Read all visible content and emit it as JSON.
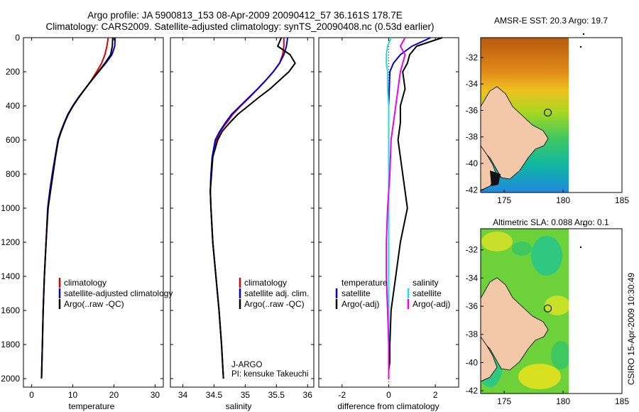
{
  "header": {
    "title_line1": "Argo profile: JA 5900813_153 08-Apr-2009 20090412_57 36.161S 178.7E",
    "title_line2": "Climatology: CARS2009. Satellite-adjusted climatology: synTS_20090408.nc (0.53d earlier)"
  },
  "side_label": "CSIRO 15-Apr-2009 10:30:49",
  "colors": {
    "red": "#dd0000",
    "blue": "#0000dd",
    "black": "#000000",
    "cyan": "#22dddd",
    "magenta": "#ee00ee",
    "land": "#f2c8a8"
  },
  "chart_data": [
    {
      "type": "line",
      "id": "temperature",
      "xlabel": "temperature",
      "ylabel": "",
      "xlim": [
        -2,
        32
      ],
      "ylim": [
        2050,
        0
      ],
      "xticks": [
        0,
        10,
        20,
        30
      ],
      "yticks": [
        0,
        200,
        400,
        600,
        800,
        1000,
        1200,
        1400,
        1600,
        1800,
        2000
      ],
      "legend": [
        "climatology",
        "satellite-adjusted climatology",
        "Argo(..raw -QC)"
      ],
      "legend_colors": [
        "red",
        "blue",
        "black"
      ],
      "series": [
        {
          "name": "climatology",
          "color": "red",
          "x": [
            18.6,
            18.3,
            17.8,
            17.0,
            15.8,
            14.5,
            13.0,
            11.4,
            10.0,
            8.8,
            7.9,
            7.1,
            6.4,
            5.7,
            5.0,
            4.4,
            3.9,
            3.5,
            3.1,
            2.8,
            2.6,
            2.4
          ],
          "y": [
            0,
            50,
            100,
            150,
            200,
            250,
            300,
            350,
            400,
            450,
            500,
            550,
            600,
            700,
            800,
            900,
            1000,
            1200,
            1400,
            1600,
            1800,
            2000
          ]
        },
        {
          "name": "satellite-adjusted climatology",
          "color": "blue",
          "x": [
            20.3,
            20.2,
            19.5,
            18.0,
            16.3,
            14.6,
            13.0,
            11.4,
            10.0,
            8.8,
            7.9,
            7.1,
            6.4,
            5.7,
            5.0,
            4.4,
            3.9,
            3.5,
            3.1,
            2.8,
            2.6,
            2.4
          ],
          "y": [
            0,
            50,
            100,
            150,
            200,
            250,
            300,
            350,
            400,
            450,
            500,
            550,
            600,
            700,
            800,
            900,
            1000,
            1200,
            1400,
            1600,
            1800,
            2000
          ]
        },
        {
          "name": "Argo(..raw -QC)",
          "color": "black",
          "x": [
            19.7,
            19.6,
            19.2,
            17.8,
            16.2,
            14.6,
            13.0,
            11.5,
            10.1,
            8.9,
            8.0,
            7.2,
            6.5,
            5.8,
            5.2,
            4.6,
            4.0,
            3.5,
            3.1,
            2.8,
            2.6,
            2.4
          ],
          "y": [
            0,
            50,
            100,
            150,
            200,
            250,
            300,
            350,
            400,
            450,
            500,
            550,
            600,
            700,
            800,
            900,
            1000,
            1200,
            1400,
            1600,
            1800,
            2000
          ]
        }
      ]
    },
    {
      "type": "line",
      "id": "salinity",
      "xlabel": "salinity",
      "xlim": [
        33.8,
        36.1
      ],
      "ylim": [
        2050,
        0
      ],
      "xticks": [
        34,
        34.5,
        35,
        35.5,
        36
      ],
      "legend": [
        "climatology",
        "satellite adj. clim.",
        "Argo(..raw -QC)"
      ],
      "legend_colors": [
        "red",
        "blue",
        "black"
      ],
      "annotation_line1": "J-ARGO",
      "annotation_line2": "PI: kensuke Takeuchi",
      "series": [
        {
          "name": "climatology",
          "color": "red",
          "x": [
            35.62,
            35.62,
            35.6,
            35.55,
            35.45,
            35.33,
            35.2,
            35.07,
            34.93,
            34.8,
            34.7,
            34.6,
            34.54,
            34.48,
            34.45,
            34.44,
            34.45,
            34.48,
            34.53,
            34.58,
            34.62,
            34.65
          ],
          "y": [
            0,
            50,
            100,
            150,
            200,
            250,
            300,
            350,
            400,
            450,
            500,
            550,
            600,
            700,
            800,
            900,
            1000,
            1200,
            1400,
            1600,
            1800,
            2000
          ]
        },
        {
          "name": "satellite adj. clim.",
          "color": "blue",
          "x": [
            35.68,
            35.66,
            35.62,
            35.55,
            35.45,
            35.33,
            35.2,
            35.06,
            34.92,
            34.78,
            34.68,
            34.59,
            34.52,
            34.47,
            34.45,
            34.44,
            34.45,
            34.48,
            34.53,
            34.58,
            34.62,
            34.65
          ],
          "y": [
            0,
            50,
            100,
            150,
            200,
            250,
            300,
            350,
            400,
            450,
            500,
            550,
            600,
            700,
            800,
            900,
            1000,
            1200,
            1400,
            1600,
            1800,
            2000
          ]
        },
        {
          "name": "Argo(..raw -QC)",
          "color": "black",
          "x": [
            35.58,
            35.52,
            35.72,
            35.8,
            35.7,
            35.55,
            35.4,
            35.22,
            35.05,
            34.88,
            34.75,
            34.63,
            34.56,
            34.48,
            34.46,
            34.44,
            34.45,
            34.48,
            34.53,
            34.58,
            34.62,
            34.65
          ],
          "y": [
            0,
            50,
            100,
            150,
            200,
            250,
            300,
            350,
            400,
            450,
            500,
            550,
            600,
            700,
            800,
            900,
            1000,
            1200,
            1400,
            1600,
            1800,
            2000
          ]
        }
      ]
    },
    {
      "type": "line",
      "id": "difference",
      "xlabel": "difference from climatology",
      "xlim": [
        -3,
        3
      ],
      "ylim": [
        2050,
        0
      ],
      "xticks": [
        -2,
        0,
        2
      ],
      "legend_title_left": "temperature",
      "legend_title_right": "salinity",
      "legend": [
        "satellite",
        "Argo(-adj)",
        "satellite",
        "Argo(-adj)"
      ],
      "legend_colors": [
        "blue",
        "black",
        "cyan",
        "magenta"
      ],
      "series": [
        {
          "name": "temperature satellite",
          "color": "blue",
          "x": [
            1.8,
            1.0,
            0.5,
            0.2,
            0.05,
            0.02,
            0.0,
            0.0,
            0.0,
            0.0,
            0.0,
            0.0,
            0.0,
            0.0,
            0.0,
            0.0,
            0.0,
            0.0
          ],
          "y": [
            0,
            50,
            100,
            150,
            200,
            300,
            400,
            500,
            600,
            800,
            1000,
            1200,
            1400,
            1600,
            1800,
            1900,
            1950,
            2000
          ]
        },
        {
          "name": "temperature Argo(-adj)",
          "color": "black",
          "x": [
            2.3,
            1.2,
            0.9,
            0.8,
            0.6,
            0.7,
            0.5,
            0.5,
            0.4,
            0.6,
            0.8,
            0.5,
            0.3,
            0.1,
            0.05,
            0.05,
            0.0,
            0.0
          ],
          "y": [
            0,
            50,
            100,
            150,
            200,
            300,
            400,
            500,
            600,
            800,
            1000,
            1200,
            1400,
            1600,
            1800,
            1900,
            1950,
            2000
          ]
        },
        {
          "name": "salinity satellite",
          "color": "cyan",
          "x": [
            0.1,
            -0.05,
            -0.1,
            -0.1,
            -0.05,
            -0.05,
            0.0,
            0.0,
            0.0,
            0.0,
            0.0,
            0.0,
            0.0,
            0.0,
            0.0,
            0.0,
            0.0,
            0.0
          ],
          "y": [
            0,
            50,
            100,
            150,
            200,
            300,
            400,
            500,
            600,
            800,
            1000,
            1200,
            1400,
            1600,
            1800,
            1900,
            1950,
            2000
          ]
        },
        {
          "name": "salinity Argo(-adj)",
          "color": "magenta",
          "x": [
            0.7,
            0.5,
            0.7,
            0.6,
            0.5,
            0.4,
            0.3,
            0.2,
            0.1,
            0.05,
            -0.05,
            -0.1,
            -0.1,
            -0.05,
            0.0,
            0.0,
            0.0,
            0.0
          ],
          "y": [
            0,
            50,
            100,
            150,
            200,
            300,
            400,
            500,
            600,
            800,
            1000,
            1200,
            1400,
            1600,
            1800,
            1900,
            1950,
            2000
          ]
        }
      ]
    },
    {
      "type": "heatmap",
      "id": "sst-map",
      "title": "AMSR-E SST: 20.3 Argo: 19.7",
      "xlim": [
        173,
        185
      ],
      "ylim": [
        -42.2,
        -30.5
      ],
      "xticks": [
        175,
        180,
        185
      ],
      "yticks": [
        -32,
        -34,
        -36,
        -38,
        -40,
        -42
      ],
      "marker": {
        "lon": 178.7,
        "lat": -36.16
      }
    },
    {
      "type": "heatmap",
      "id": "sla-map",
      "title": "Altimetric SLA: 0.088 Argo: 0.1",
      "xlim": [
        173,
        185
      ],
      "ylim": [
        -42.2,
        -30.5
      ],
      "xticks": [
        175,
        180,
        185
      ],
      "yticks": [
        -32,
        -34,
        -36,
        -38,
        -40,
        -42
      ],
      "marker": {
        "lon": 178.7,
        "lat": -36.16
      }
    }
  ]
}
